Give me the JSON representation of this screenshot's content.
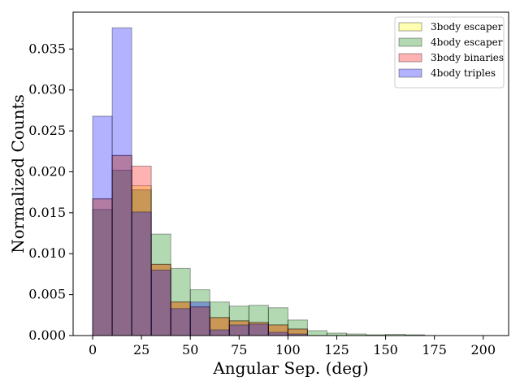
{
  "chart_data": {
    "type": "bar",
    "subtype": "overlaid-histogram",
    "xlabel": "Angular Sep. (deg)",
    "ylabel": "Normalized Counts",
    "xlim": [
      -10,
      213
    ],
    "ylim": [
      0,
      0.0395
    ],
    "xticks": [
      0,
      25,
      50,
      75,
      100,
      125,
      150,
      175,
      200
    ],
    "yticks": [
      0.0,
      0.005,
      0.01,
      0.015,
      0.02,
      0.025,
      0.03,
      0.035
    ],
    "ytick_labels": [
      "0.000",
      "0.005",
      "0.010",
      "0.015",
      "0.020",
      "0.025",
      "0.030",
      "0.035"
    ],
    "bin_edges": [
      0,
      10,
      20,
      30,
      40,
      50,
      60,
      70,
      80,
      90,
      100,
      110,
      120,
      130,
      140,
      150,
      160,
      170
    ],
    "legend_position": "top-right",
    "grid": false,
    "series": [
      {
        "name": "3body escaper",
        "color": "#ffff00",
        "values": [
          0.0167,
          0.022,
          0.0183,
          0.0087,
          0.0041,
          0.0035,
          0.0022,
          0.0018,
          0.0016,
          0.0013,
          0.0008,
          0,
          0,
          0,
          0,
          0,
          0
        ]
      },
      {
        "name": "4body escaper",
        "color": "#008000",
        "values": [
          0.0154,
          0.0202,
          0.0178,
          0.0124,
          0.0082,
          0.0056,
          0.0041,
          0.0036,
          0.0037,
          0.0034,
          0.0019,
          0.0006,
          0.0003,
          0.0002,
          0.0001,
          0.00015,
          0.0001
        ]
      },
      {
        "name": "3body binaries",
        "color": "#ff0000",
        "values": [
          0.0167,
          0.022,
          0.0207,
          0.0087,
          0.0041,
          0.0035,
          0.0022,
          0.0018,
          0.0016,
          0.0013,
          0.0008,
          0,
          0,
          0,
          0,
          0,
          0
        ]
      },
      {
        "name": "4body triples",
        "color": "#0000ff",
        "values": [
          0.0268,
          0.0376,
          0.0151,
          0.008,
          0.0033,
          0.0041,
          0.0007,
          0.0013,
          0.0014,
          0.0004,
          0.0002,
          0,
          0,
          0,
          0,
          0,
          0
        ]
      }
    ]
  }
}
